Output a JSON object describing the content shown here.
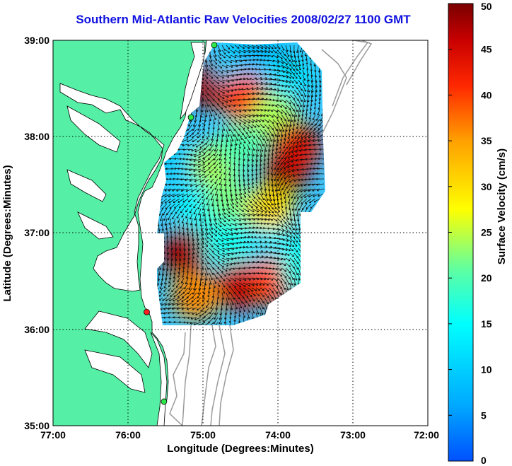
{
  "title": "Southern Mid-Atlantic Raw Velocities 2008/02/27 1100 GMT",
  "x_axis": {
    "label": "Longitude (Degrees:Minutes)",
    "ticks": [
      "77:00",
      "76:00",
      "75:00",
      "74:00",
      "73:00",
      "72:00"
    ]
  },
  "y_axis": {
    "label": "Latitude (Degrees:Minutes)",
    "ticks": [
      "39:00",
      "38:00",
      "37:00",
      "36:00",
      "35:00"
    ]
  },
  "colorbar": {
    "label": "Surface Velocity (cm/s)",
    "ticks": [
      "50",
      "45",
      "40",
      "35",
      "30",
      "25",
      "20",
      "15",
      "10",
      "5",
      "0"
    ],
    "range": [
      0,
      50
    ]
  },
  "colors": {
    "land": "#55f0a6",
    "title": "#1010e0",
    "grid": "#000000",
    "bathymetry": "#9a9a9a",
    "station_green": "#2ee84a",
    "station_red": "#ff2020"
  },
  "stations": [
    {
      "name": "",
      "color": "green",
      "lon": -74.85,
      "lat": 38.95
    },
    {
      "name": "",
      "color": "green",
      "lon": -75.16,
      "lat": 38.2
    },
    {
      "name": "",
      "color": "red",
      "lon": -75.75,
      "lat": 36.18
    },
    {
      "name": "",
      "color": "green",
      "lon": -75.52,
      "lat": 35.25
    }
  ],
  "velocity_patches": [
    {
      "lon": -74.9,
      "lat": 38.55,
      "speed": 48
    },
    {
      "lon": -74.55,
      "lat": 38.75,
      "speed": 10
    },
    {
      "lon": -74.2,
      "lat": 38.85,
      "speed": 8
    },
    {
      "lon": -73.85,
      "lat": 38.6,
      "speed": 12
    },
    {
      "lon": -74.45,
      "lat": 38.4,
      "speed": 40
    },
    {
      "lon": -74.05,
      "lat": 38.2,
      "speed": 24
    },
    {
      "lon": -75.25,
      "lat": 37.75,
      "speed": 10
    },
    {
      "lon": -74.85,
      "lat": 37.7,
      "speed": 24
    },
    {
      "lon": -74.5,
      "lat": 37.9,
      "speed": 20
    },
    {
      "lon": -73.9,
      "lat": 37.65,
      "speed": 48
    },
    {
      "lon": -73.75,
      "lat": 37.9,
      "speed": 44
    },
    {
      "lon": -75.1,
      "lat": 37.25,
      "speed": 14
    },
    {
      "lon": -74.65,
      "lat": 37.3,
      "speed": 22
    },
    {
      "lon": -74.1,
      "lat": 37.25,
      "speed": 30
    },
    {
      "lon": -75.25,
      "lat": 36.8,
      "speed": 48
    },
    {
      "lon": -74.7,
      "lat": 36.9,
      "speed": 16
    },
    {
      "lon": -74.1,
      "lat": 36.8,
      "speed": 12
    },
    {
      "lon": -73.75,
      "lat": 36.85,
      "speed": 14
    },
    {
      "lon": -75.1,
      "lat": 36.35,
      "speed": 36
    },
    {
      "lon": -74.5,
      "lat": 36.45,
      "speed": 46
    },
    {
      "lon": -74.05,
      "lat": 36.5,
      "speed": 40
    },
    {
      "lon": -73.65,
      "lat": 36.6,
      "speed": 16
    }
  ]
}
